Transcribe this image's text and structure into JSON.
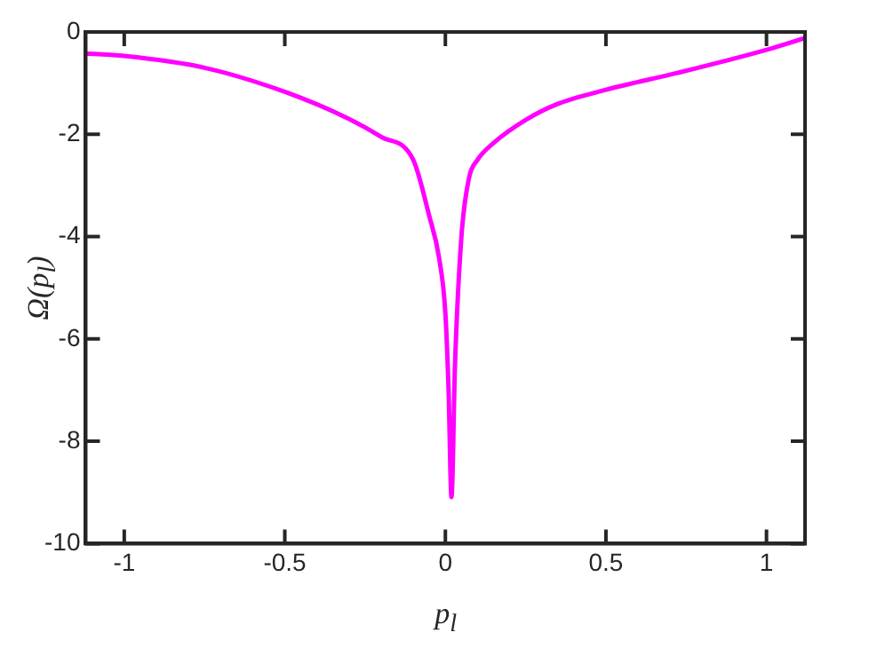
{
  "chart_data": {
    "type": "line",
    "xlabel": "p$_{l}$",
    "ylabel": "Ω(p$_{l}$)",
    "series": [
      {
        "color": "#ff00ff",
        "x": [
          -1.12,
          -1.0,
          -0.75,
          -0.5,
          -0.3,
          -0.2,
          -0.1,
          -0.05,
          -0.02,
          0.0,
          0.01,
          0.019,
          0.03,
          0.05,
          0.073,
          0.1,
          0.15,
          0.25,
          0.344,
          0.5,
          0.73,
          1.0,
          1.12
        ],
        "values": [
          -0.42,
          -0.47,
          -0.7,
          -1.17,
          -1.7,
          -2.05,
          -2.5,
          -3.6,
          -4.4,
          -5.5,
          -7,
          -9.09,
          -6.5,
          -4.0,
          -2.87,
          -2.5,
          -2.17,
          -1.72,
          -1.42,
          -1.13,
          -0.79,
          -0.35,
          -0.12
        ]
      }
    ],
    "xlim": [
      -1.12,
      1.12
    ],
    "xticks": [
      -1,
      -0.5,
      0,
      0.5,
      1
    ],
    "ylim": [
      -10,
      0
    ],
    "yticks": [
      -10,
      -8,
      -6,
      -4,
      -2,
      0
    ],
    "grid": false,
    "legend": false,
    "marker": "none",
    "line_style": "solid"
  }
}
